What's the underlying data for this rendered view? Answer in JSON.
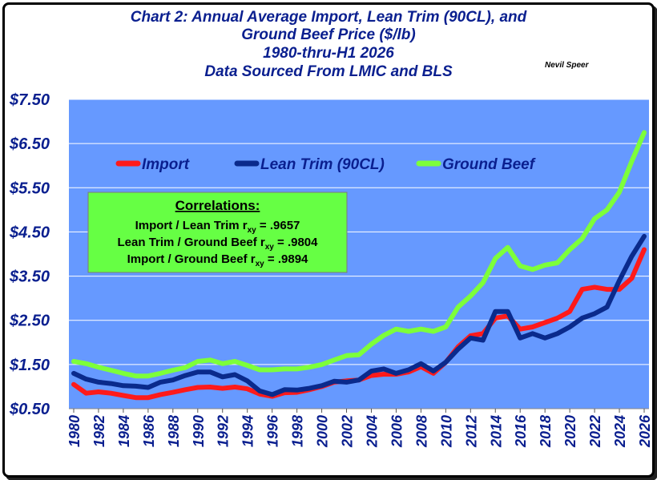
{
  "title_lines": [
    "Chart 2:   Annual Average Import, Lean Trim (90CL), and",
    "Ground Beef Price ($/lb)",
    "1980-thru-H1 2026",
    "Data Sourced From LMIC and BLS"
  ],
  "author": "Nevil Speer",
  "correlations": {
    "heading": "Correlations:",
    "lines": [
      {
        "pair": "Import / Lean Trim r",
        "sub": "xy",
        "value": " = .9657"
      },
      {
        "pair": "Lean Trim / Ground Beef r",
        "sub": "xy",
        "value": " = .9804"
      },
      {
        "pair": "Import / Ground Beef r",
        "sub": "xy",
        "value": " = .9894"
      }
    ]
  },
  "colors": {
    "plot_bg": "#6699ff",
    "title": "#0a1f8f",
    "axis_text": "#0a1f8f",
    "box_fill": "#66ff44",
    "Import": "#ff1a1a",
    "Lean Trim (90CL)": "#0a2a8c",
    "Ground Beef": "#7dff3a"
  },
  "chart_data": {
    "type": "line",
    "xlabel": "",
    "ylabel": "",
    "ylim": [
      0.5,
      7.5
    ],
    "xlim": [
      1980,
      2026
    ],
    "y_ticks": [
      "$0.50",
      "$1.50",
      "$2.50",
      "$3.50",
      "$4.50",
      "$5.50",
      "$6.50",
      "$7.50"
    ],
    "y_tick_values": [
      0.5,
      1.5,
      2.5,
      3.5,
      4.5,
      5.5,
      6.5,
      7.5
    ],
    "x_ticks": [
      "1980",
      "1982",
      "1984",
      "1986",
      "1988",
      "1990",
      "1992",
      "1994",
      "1996",
      "1998",
      "2000",
      "2002",
      "2004",
      "2006",
      "2008",
      "2010",
      "2012",
      "2014",
      "2016",
      "2018",
      "2020",
      "2022",
      "2024",
      "2026"
    ],
    "grid": true,
    "legend_position": "top-left",
    "x": [
      1980,
      1981,
      1982,
      1983,
      1984,
      1985,
      1986,
      1987,
      1988,
      1989,
      1990,
      1991,
      1992,
      1993,
      1994,
      1995,
      1996,
      1997,
      1998,
      1999,
      2000,
      2001,
      2002,
      2003,
      2004,
      2005,
      2006,
      2007,
      2008,
      2009,
      2010,
      2011,
      2012,
      2013,
      2014,
      2015,
      2016,
      2017,
      2018,
      2019,
      2020,
      2021,
      2022,
      2023,
      2024,
      2025,
      2026
    ],
    "series": [
      {
        "name": "Import",
        "values": [
          1.05,
          0.85,
          0.88,
          0.85,
          0.8,
          0.75,
          0.75,
          0.82,
          0.87,
          0.93,
          0.98,
          0.99,
          0.96,
          0.99,
          0.95,
          0.83,
          0.78,
          0.86,
          0.87,
          0.93,
          1.0,
          1.1,
          1.13,
          1.15,
          1.25,
          1.28,
          1.28,
          1.33,
          1.45,
          1.3,
          1.55,
          1.9,
          2.15,
          2.2,
          2.55,
          2.6,
          2.3,
          2.35,
          2.45,
          2.55,
          2.7,
          3.2,
          3.25,
          3.2,
          3.2,
          3.45,
          4.1
        ]
      },
      {
        "name": "Lean Trim (90CL)",
        "values": [
          1.3,
          1.17,
          1.1,
          1.07,
          1.02,
          1.01,
          0.98,
          1.1,
          1.15,
          1.25,
          1.33,
          1.33,
          1.22,
          1.27,
          1.13,
          0.9,
          0.82,
          0.93,
          0.92,
          0.96,
          1.02,
          1.12,
          1.1,
          1.15,
          1.35,
          1.4,
          1.3,
          1.38,
          1.52,
          1.35,
          1.55,
          1.85,
          2.1,
          2.05,
          2.7,
          2.7,
          2.1,
          2.2,
          2.1,
          2.2,
          2.35,
          2.55,
          2.65,
          2.8,
          3.4,
          3.95,
          4.4
        ]
      },
      {
        "name": "Ground Beef",
        "values": [
          1.57,
          1.52,
          1.44,
          1.37,
          1.3,
          1.24,
          1.24,
          1.3,
          1.37,
          1.43,
          1.57,
          1.6,
          1.52,
          1.57,
          1.48,
          1.38,
          1.38,
          1.4,
          1.4,
          1.44,
          1.5,
          1.6,
          1.7,
          1.72,
          1.96,
          2.16,
          2.3,
          2.25,
          2.3,
          2.25,
          2.35,
          2.8,
          3.05,
          3.35,
          3.9,
          4.15,
          3.73,
          3.65,
          3.75,
          3.8,
          4.1,
          4.35,
          4.8,
          5.0,
          5.4,
          6.1,
          6.75
        ]
      }
    ]
  }
}
